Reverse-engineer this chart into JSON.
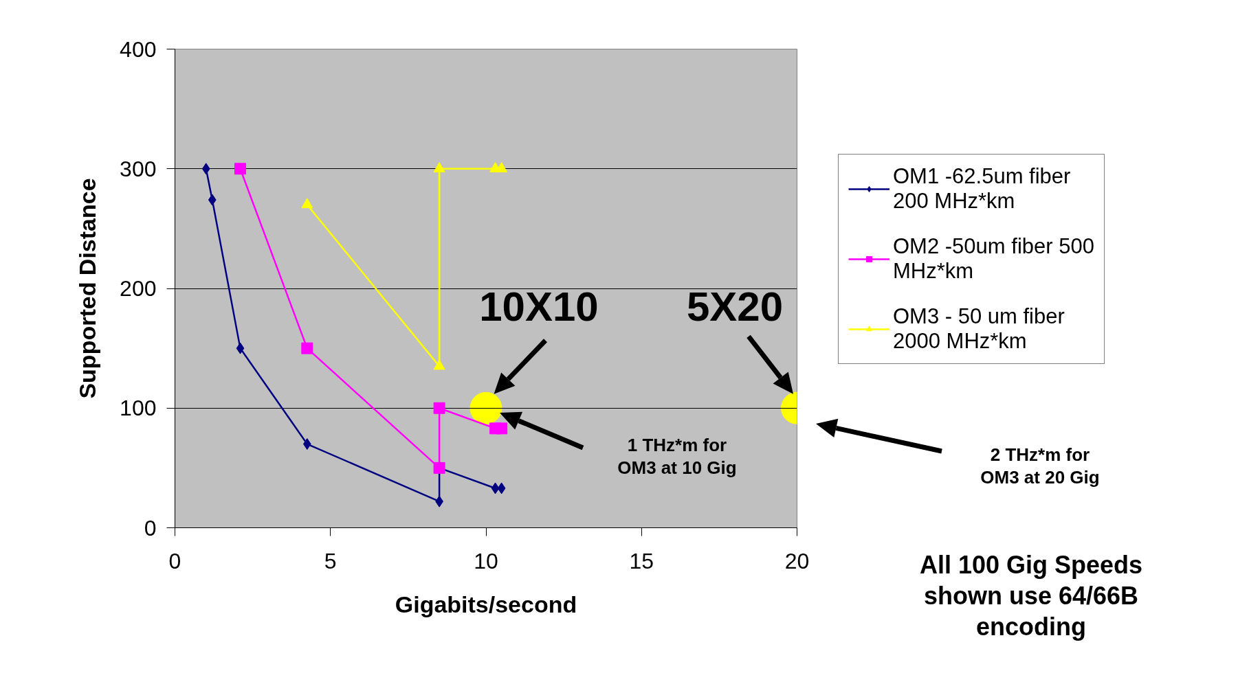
{
  "chart_data": {
    "type": "line",
    "xlabel": "Gigabits/second",
    "ylabel": "Supported Distance",
    "xlim": [
      0,
      20
    ],
    "ylim": [
      0,
      400
    ],
    "xticks": [
      0,
      5,
      10,
      15,
      20
    ],
    "yticks": [
      0,
      100,
      200,
      300,
      400
    ],
    "grid": "y",
    "legend": "right",
    "line_style": "solid",
    "series": [
      {
        "name": "OM1 -62.5um fiber 200 MHz*km",
        "color": "#000080",
        "marker": "diamond",
        "x": [
          1.0,
          1.2,
          2.1,
          4.25,
          8.5,
          8.5,
          10.3,
          10.5
        ],
        "values": [
          300,
          274,
          150,
          70,
          22,
          50,
          33,
          33
        ]
      },
      {
        "name": "OM2 -50um fiber 500 MHz*km",
        "color": "#ff00ff",
        "marker": "square",
        "x": [
          2.1,
          4.25,
          8.5,
          8.5,
          10.3,
          10.5
        ],
        "values": [
          300,
          150,
          50,
          100,
          83,
          83
        ]
      },
      {
        "name": "OM3 - 50 um fiber 2000 MHz*km",
        "color": "#ffff00",
        "marker": "triangle",
        "x": [
          4.25,
          8.5,
          8.5,
          10.3,
          10.5
        ],
        "values": [
          270,
          135,
          300,
          300,
          300
        ]
      },
      {
        "type": "scatter",
        "color": "#ffff00",
        "marker": "circle",
        "x": [
          10,
          20
        ],
        "values": [
          100,
          100
        ]
      }
    ],
    "annotations": [
      {
        "text": "10X10",
        "x": 10,
        "y": 100
      },
      {
        "text": "5X20",
        "x": 20,
        "y": 100
      },
      "1 THz*m for OM3 at 10 Gig",
      "2 THz*m for OM3 at 20 Gig",
      "All 100 Gig Speeds shown use 64/66B encoding"
    ]
  }
}
